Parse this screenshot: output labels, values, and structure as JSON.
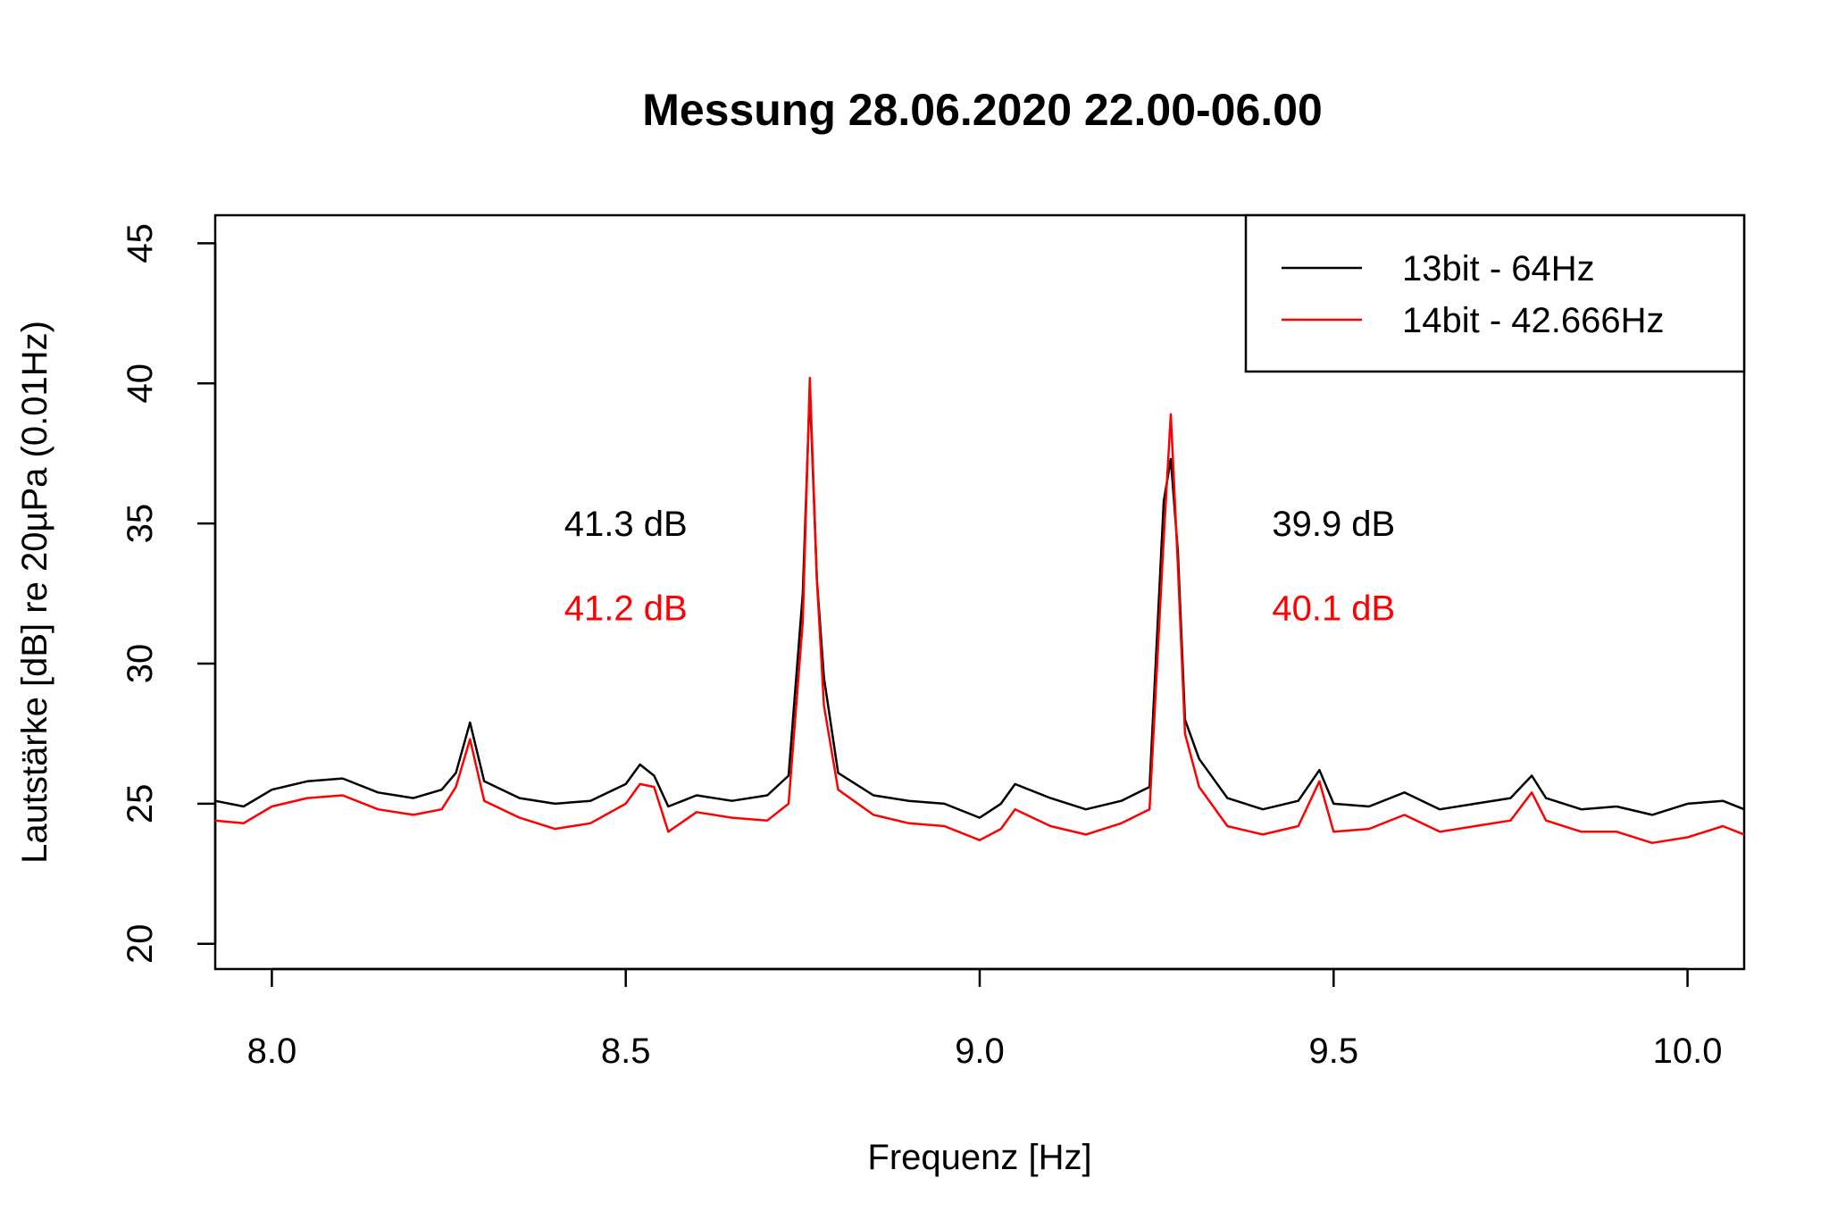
{
  "chart_data": {
    "type": "line",
    "title": "Messung 28.06.2020 22.00-06.00",
    "xlabel": "Frequenz [Hz]",
    "ylabel": "Lautstärke [dB] re 20µPa (0.01Hz)",
    "xlim": [
      7.92,
      10.08
    ],
    "ylim": [
      19.1,
      46.0
    ],
    "xticks": [
      8.0,
      8.5,
      9.0,
      9.5,
      10.0
    ],
    "xtick_labels": [
      "8.0",
      "8.5",
      "9.0",
      "9.5",
      "10.0"
    ],
    "yticks": [
      20,
      25,
      30,
      35,
      40,
      45
    ],
    "ytick_labels": [
      "20",
      "25",
      "30",
      "35",
      "40",
      "45"
    ],
    "grid": false,
    "legend_position": "top-right",
    "series": [
      {
        "name": "13bit - 64Hz",
        "color": "#000000",
        "x": [
          7.92,
          7.96,
          8.0,
          8.05,
          8.1,
          8.15,
          8.2,
          8.24,
          8.26,
          8.28,
          8.3,
          8.35,
          8.4,
          8.45,
          8.5,
          8.52,
          8.54,
          8.56,
          8.6,
          8.65,
          8.7,
          8.73,
          8.75,
          8.76,
          8.77,
          8.78,
          8.8,
          8.85,
          8.9,
          8.95,
          9.0,
          9.03,
          9.05,
          9.1,
          9.15,
          9.2,
          9.24,
          9.26,
          9.27,
          9.28,
          9.29,
          9.31,
          9.35,
          9.4,
          9.45,
          9.48,
          9.5,
          9.55,
          9.6,
          9.65,
          9.7,
          9.75,
          9.78,
          9.8,
          9.85,
          9.9,
          9.95,
          10.0,
          10.05,
          10.08
        ],
        "y": [
          25.1,
          24.9,
          25.5,
          25.8,
          25.9,
          25.4,
          25.2,
          25.5,
          26.1,
          27.9,
          25.8,
          25.2,
          25.0,
          25.1,
          25.7,
          26.4,
          26.0,
          24.9,
          25.3,
          25.1,
          25.3,
          26.0,
          32.5,
          39.8,
          33.0,
          29.5,
          26.1,
          25.3,
          25.1,
          25.0,
          24.5,
          25.0,
          25.7,
          25.2,
          24.8,
          25.1,
          25.6,
          35.8,
          37.3,
          34.0,
          28.0,
          26.6,
          25.2,
          24.8,
          25.1,
          26.2,
          25.0,
          24.9,
          25.4,
          24.8,
          25.0,
          25.2,
          26.0,
          25.2,
          24.8,
          24.9,
          24.6,
          25.0,
          25.1,
          24.8
        ]
      },
      {
        "name": "14bit - 42.666Hz",
        "color": "#ff0000",
        "x": [
          7.92,
          7.96,
          8.0,
          8.05,
          8.1,
          8.15,
          8.2,
          8.24,
          8.26,
          8.28,
          8.3,
          8.35,
          8.4,
          8.45,
          8.5,
          8.52,
          8.54,
          8.56,
          8.6,
          8.65,
          8.7,
          8.73,
          8.75,
          8.76,
          8.77,
          8.78,
          8.8,
          8.85,
          8.9,
          8.95,
          9.0,
          9.03,
          9.05,
          9.1,
          9.15,
          9.2,
          9.24,
          9.26,
          9.27,
          9.28,
          9.29,
          9.31,
          9.35,
          9.4,
          9.45,
          9.48,
          9.5,
          9.55,
          9.6,
          9.65,
          9.7,
          9.75,
          9.78,
          9.8,
          9.85,
          9.9,
          9.95,
          10.0,
          10.05,
          10.08
        ],
        "y": [
          24.4,
          24.3,
          24.9,
          25.2,
          25.3,
          24.8,
          24.6,
          24.8,
          25.6,
          27.3,
          25.1,
          24.5,
          24.1,
          24.3,
          25.0,
          25.7,
          25.6,
          24.0,
          24.7,
          24.5,
          24.4,
          25.0,
          31.5,
          40.2,
          33.0,
          28.5,
          25.5,
          24.6,
          24.3,
          24.2,
          23.7,
          24.1,
          24.8,
          24.2,
          23.9,
          24.3,
          24.8,
          34.5,
          38.9,
          33.5,
          27.5,
          25.6,
          24.2,
          23.9,
          24.2,
          25.8,
          24.0,
          24.1,
          24.6,
          24.0,
          24.2,
          24.4,
          25.4,
          24.4,
          24.0,
          24.0,
          23.6,
          23.8,
          24.2,
          23.9
        ]
      }
    ],
    "annotations": [
      {
        "text": "41.3 dB",
        "x": 8.5,
        "y": 35.0,
        "color": "#000000"
      },
      {
        "text": "41.2 dB",
        "x": 8.5,
        "y": 32.0,
        "color": "#ff0000"
      },
      {
        "text": "39.9 dB",
        "x": 9.5,
        "y": 35.0,
        "color": "#000000"
      },
      {
        "text": "40.1 dB",
        "x": 9.5,
        "y": 32.0,
        "color": "#ff0000"
      }
    ]
  }
}
